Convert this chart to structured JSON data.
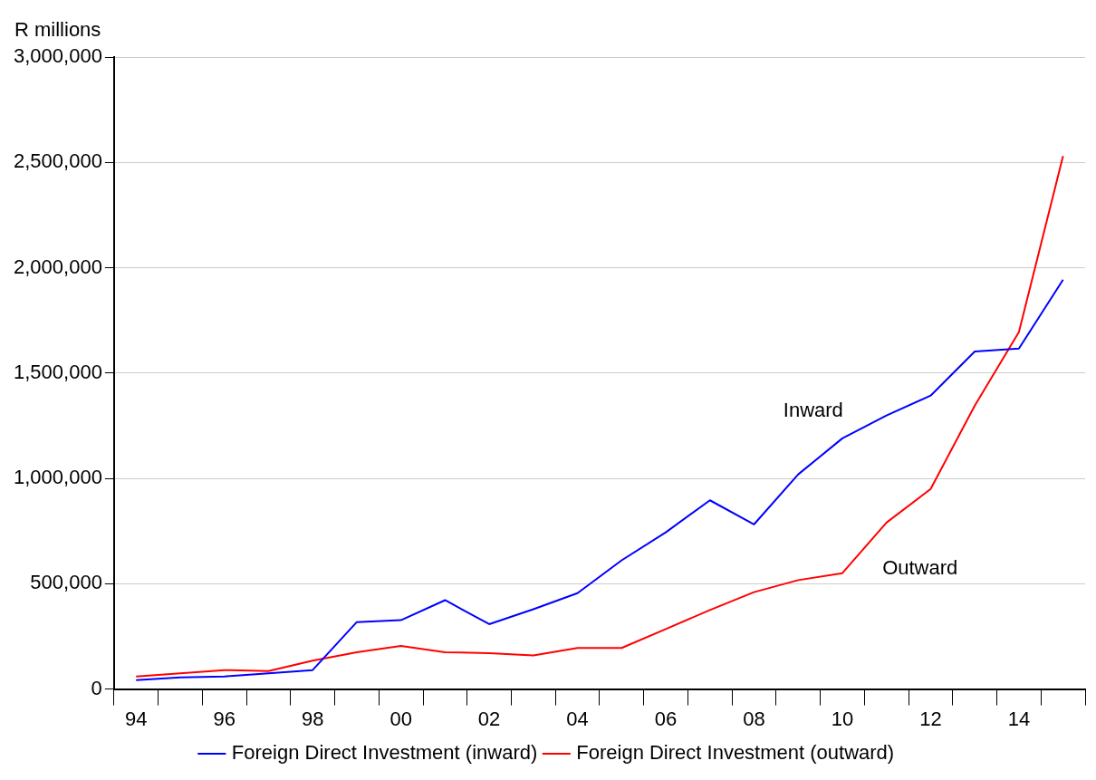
{
  "chart_data": {
    "type": "line",
    "ylabel": "R millions",
    "categories": [
      "94",
      null,
      "96",
      null,
      "98",
      null,
      "00",
      null,
      "02",
      null,
      "04",
      null,
      "06",
      null,
      "08",
      null,
      "10",
      null,
      "12",
      null,
      "14",
      null
    ],
    "series": [
      {
        "name": "Foreign Direct Investment (inward)",
        "color": "#0000ff",
        "values": [
          42000,
          55000,
          60000,
          75000,
          90000,
          318000,
          327000,
          422000,
          308000,
          379000,
          455000,
          611000,
          744000,
          896000,
          782000,
          1019000,
          1190000,
          1299000,
          1393000,
          1602000,
          1616000,
          1943000
        ]
      },
      {
        "name": "Foreign Direct Investment (outward)",
        "color": "#ff0000",
        "values": [
          60000,
          75000,
          90000,
          85000,
          135000,
          175000,
          205000,
          175000,
          170000,
          160000,
          195000,
          195000,
          285000,
          375000,
          460000,
          517000,
          550000,
          790000,
          950000,
          1345000,
          1695000,
          2530000
        ]
      }
    ],
    "ylim": [
      0,
      3000000
    ],
    "yticks": [
      0,
      {
        "value": 500000,
        "label": "500,000"
      },
      {
        "value": 1000000,
        "label": "1,000,000"
      },
      {
        "value": 1500000,
        "label": "1,500,000"
      },
      {
        "value": 2000000,
        "label": "2,000,000"
      },
      {
        "value": 2500000,
        "label": "2,500,000"
      },
      {
        "value": 3000000,
        "label": "3,000,000"
      }
    ],
    "grid": "y",
    "legend": "bottom",
    "marker": "none",
    "line_style": "solid",
    "annotations": [
      "Inward",
      "Outward"
    ]
  }
}
